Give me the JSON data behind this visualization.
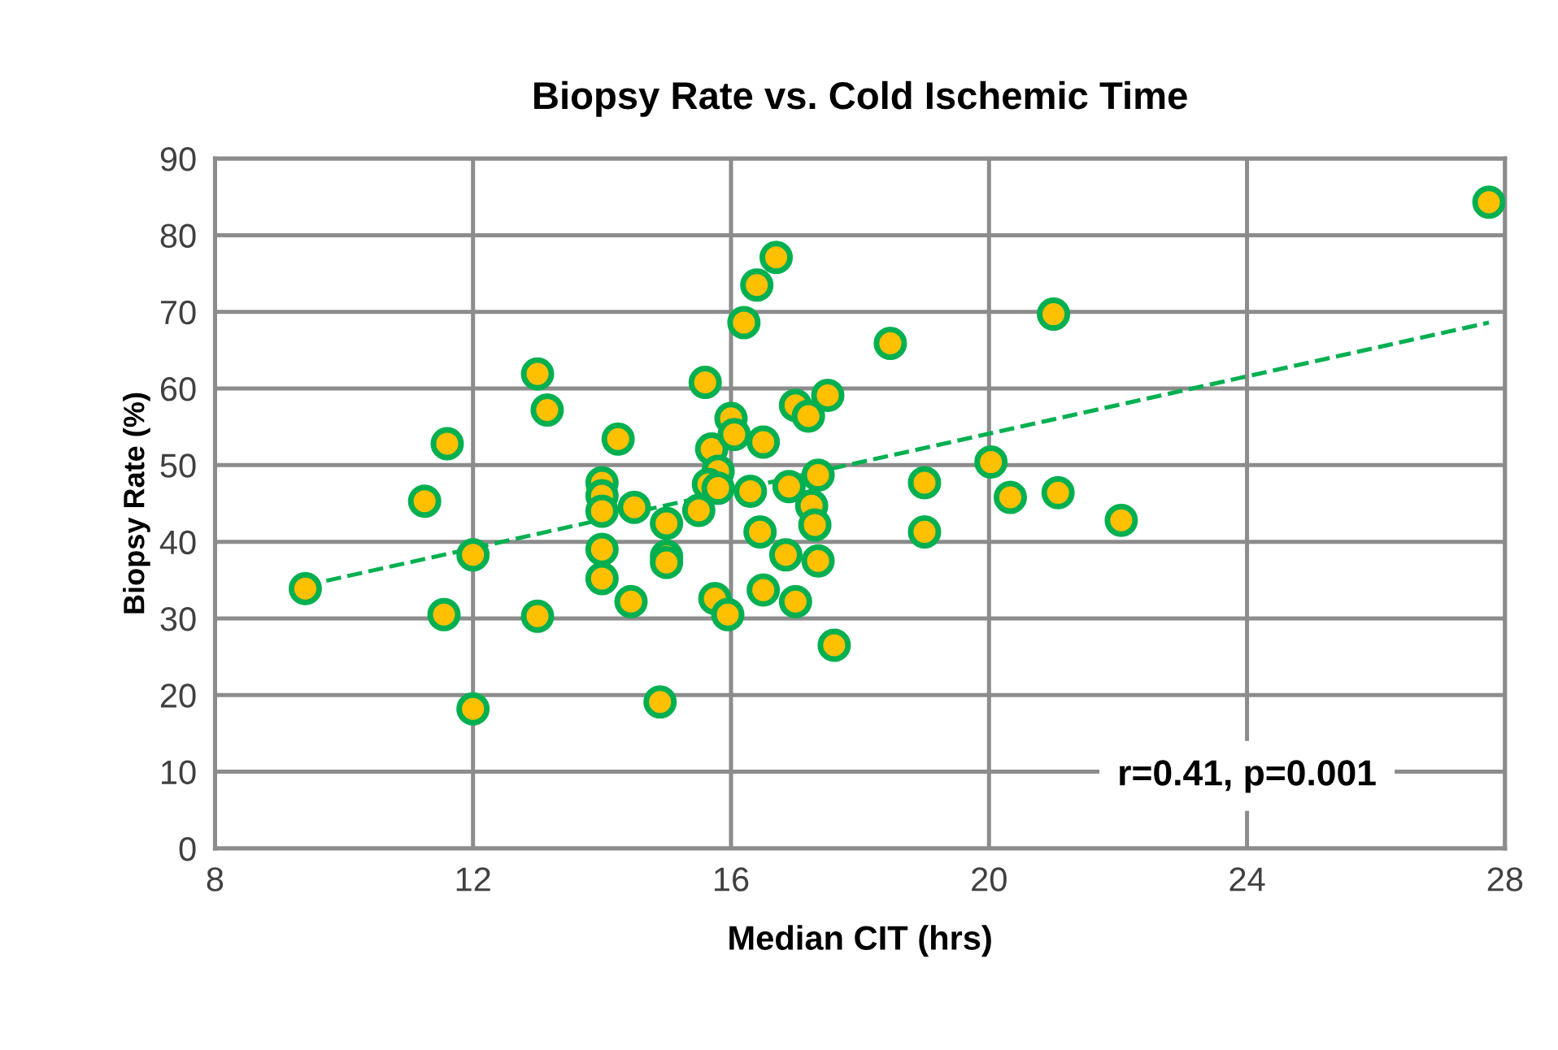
{
  "chart_data": {
    "type": "scatter",
    "title": "Biopsy Rate vs. Cold Ischemic Time",
    "xlabel": "Median CIT (hrs)",
    "ylabel": "Biopsy Rate (%)",
    "xlim": [
      8,
      28
    ],
    "xticks": [
      8,
      12,
      16,
      20,
      24,
      28
    ],
    "ylim": [
      0,
      90
    ],
    "yticks": [
      0,
      10,
      20,
      30,
      40,
      50,
      60,
      70,
      80,
      90
    ],
    "grid": true,
    "series": [
      {
        "color": "#ffc000",
        "marker": "circle",
        "x": [
          9.4,
          11.25,
          11.6,
          11.55,
          12.0,
          12.0,
          13.0,
          13.15,
          13.0,
          14.25,
          14.0,
          14.0,
          14.0,
          14.0,
          14.0,
          14.45,
          14.5,
          14.9,
          15.0,
          15.0,
          15.0,
          15.5,
          15.6,
          15.7,
          15.8,
          15.65,
          15.8,
          15.75,
          15.95,
          16.0,
          16.05,
          16.2,
          16.3,
          16.4,
          16.7,
          16.5,
          16.5,
          17.0,
          17.2,
          17.5,
          16.9,
          17.35,
          17.25,
          17.3,
          16.85,
          17.35,
          17.0,
          17.6,
          16.45,
          18.47,
          19.0,
          19.0,
          27.75,
          21.0,
          20.03,
          20.33,
          21.07,
          22.05
        ],
        "values": [
          33.9,
          45.3,
          52.8,
          30.5,
          38.3,
          18.2,
          61.9,
          57.2,
          30.3,
          53.4,
          39.0,
          47.7,
          46.0,
          44.0,
          35.2,
          32.2,
          44.5,
          19.1,
          42.4,
          38.1,
          37.3,
          44.1,
          60.8,
          52.1,
          49.2,
          47.5,
          47.0,
          32.6,
          30.5,
          56.1,
          54.0,
          68.6,
          46.6,
          73.5,
          77.1,
          33.7,
          53.0,
          57.8,
          56.4,
          59.1,
          47.2,
          48.7,
          44.7,
          42.2,
          38.3,
          37.5,
          32.2,
          26.5,
          41.3,
          65.9,
          47.7,
          41.3,
          84.3,
          69.7,
          50.4,
          45.8,
          46.4,
          42.8
        ]
      },
      {
        "type": "line",
        "color": "#00b050",
        "line_style": "dashed",
        "x": [
          9.4,
          27.75
        ],
        "values": [
          34.3,
          68.6
        ]
      }
    ],
    "annotations": [
      "r=0.41, p=0.001"
    ]
  }
}
